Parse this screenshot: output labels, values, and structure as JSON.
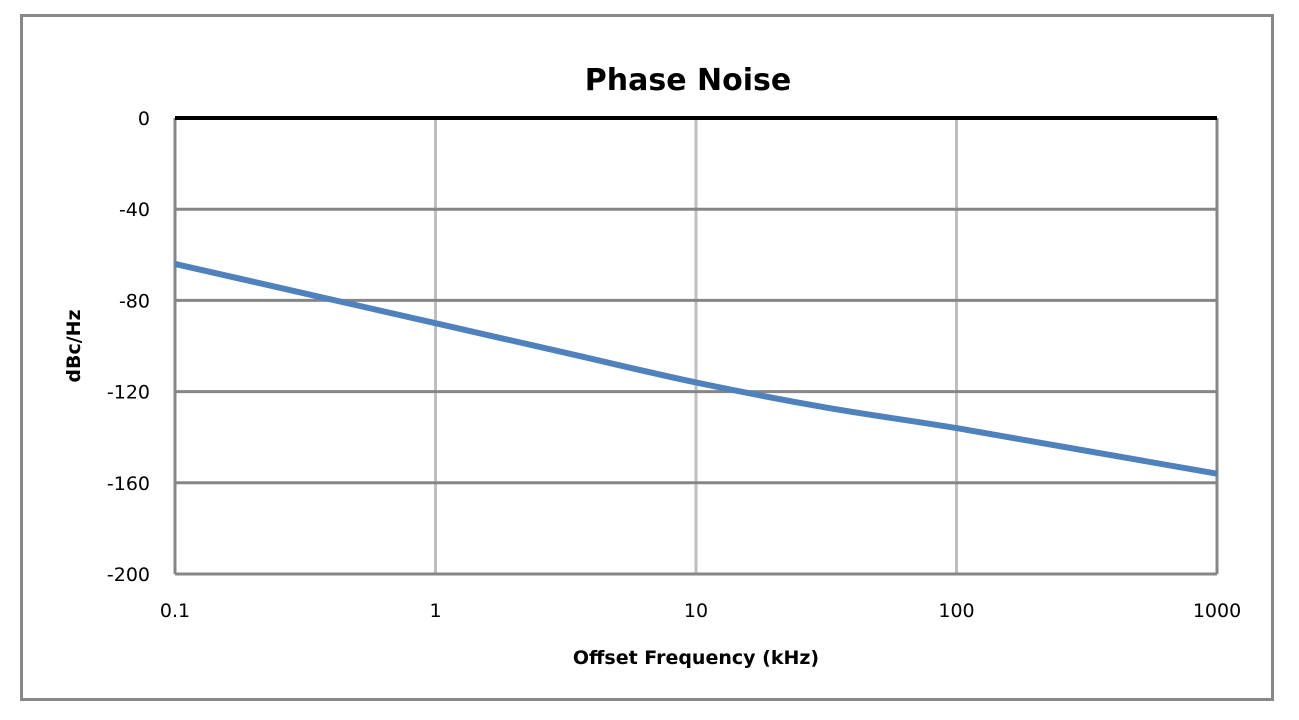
{
  "chart_data": {
    "type": "line",
    "title": "Phase Noise",
    "xlabel": "Offset Frequency (kHz)",
    "ylabel": "dBc/Hz",
    "xscale": "log",
    "xlim": [
      0.1,
      1000
    ],
    "ylim": [
      -200,
      0
    ],
    "x_ticks": [
      "0.1",
      "1",
      "10",
      "100",
      "1000"
    ],
    "y_ticks": [
      "0",
      "-40",
      "-80",
      "-120",
      "-160",
      "-200"
    ],
    "grid": true,
    "legend": "none",
    "series": [
      {
        "name": "Phase Noise",
        "color": "#4F81BD",
        "x": [
          0.1,
          0.316,
          1,
          3.16,
          10,
          31.6,
          100,
          316,
          1000
        ],
        "values": [
          -64,
          -77,
          -90,
          -103,
          -116,
          -127,
          -136,
          -146,
          -156
        ]
      }
    ]
  },
  "colors": {
    "line": "#4F81BD",
    "grid_vertical": "#BFBFBF",
    "grid_horizontal": "#868686",
    "zero_line": "#000000",
    "frame": "#888888"
  }
}
